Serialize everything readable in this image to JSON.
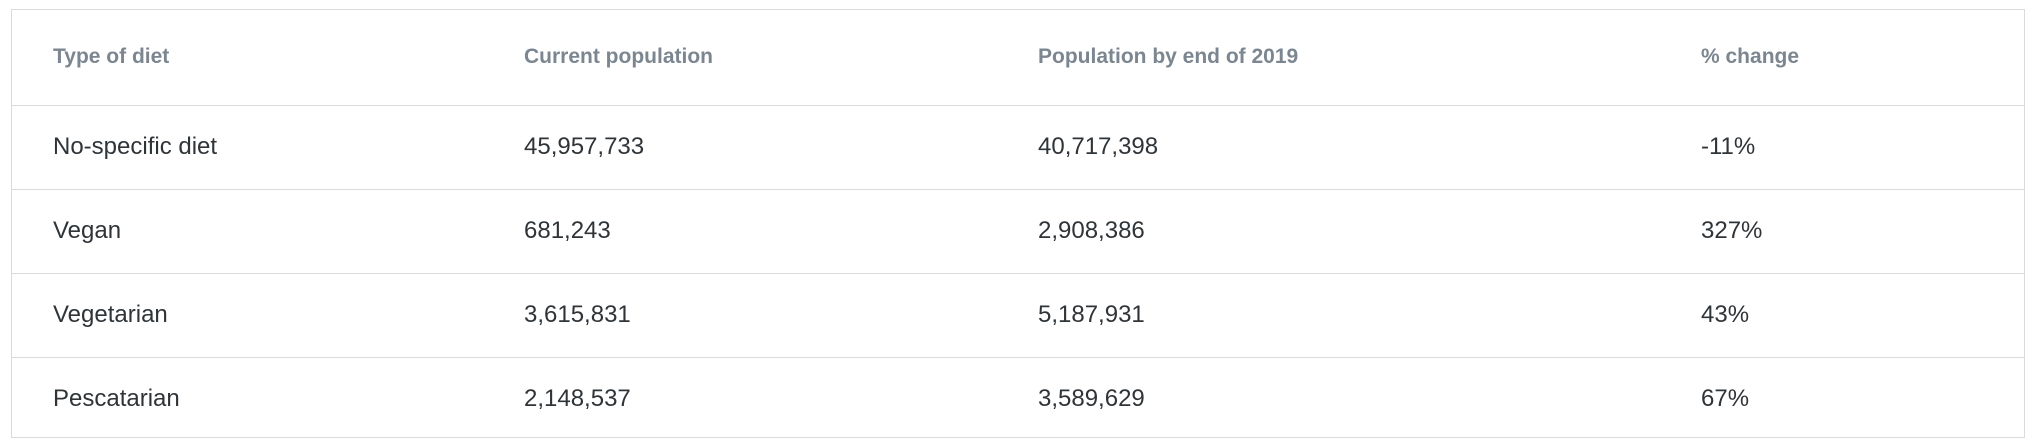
{
  "table": {
    "headers": [
      "Type of diet",
      "Current population",
      "Population by end of 2019",
      "% change"
    ],
    "rows": [
      [
        "No-specific diet",
        "45,957,733",
        "40,717,398",
        "-11%"
      ],
      [
        "Vegan",
        "681,243",
        "2,908,386",
        "327%"
      ],
      [
        "Vegetarian",
        "3,615,831",
        "5,187,931",
        "43%"
      ],
      [
        "Pescatarian",
        "2,148,537",
        "3,589,629",
        "67%"
      ]
    ]
  },
  "colors": {
    "header_text": "#7b8690",
    "body_text": "#2f3438",
    "border": "#d9dcdf",
    "background": "#ffffff"
  }
}
